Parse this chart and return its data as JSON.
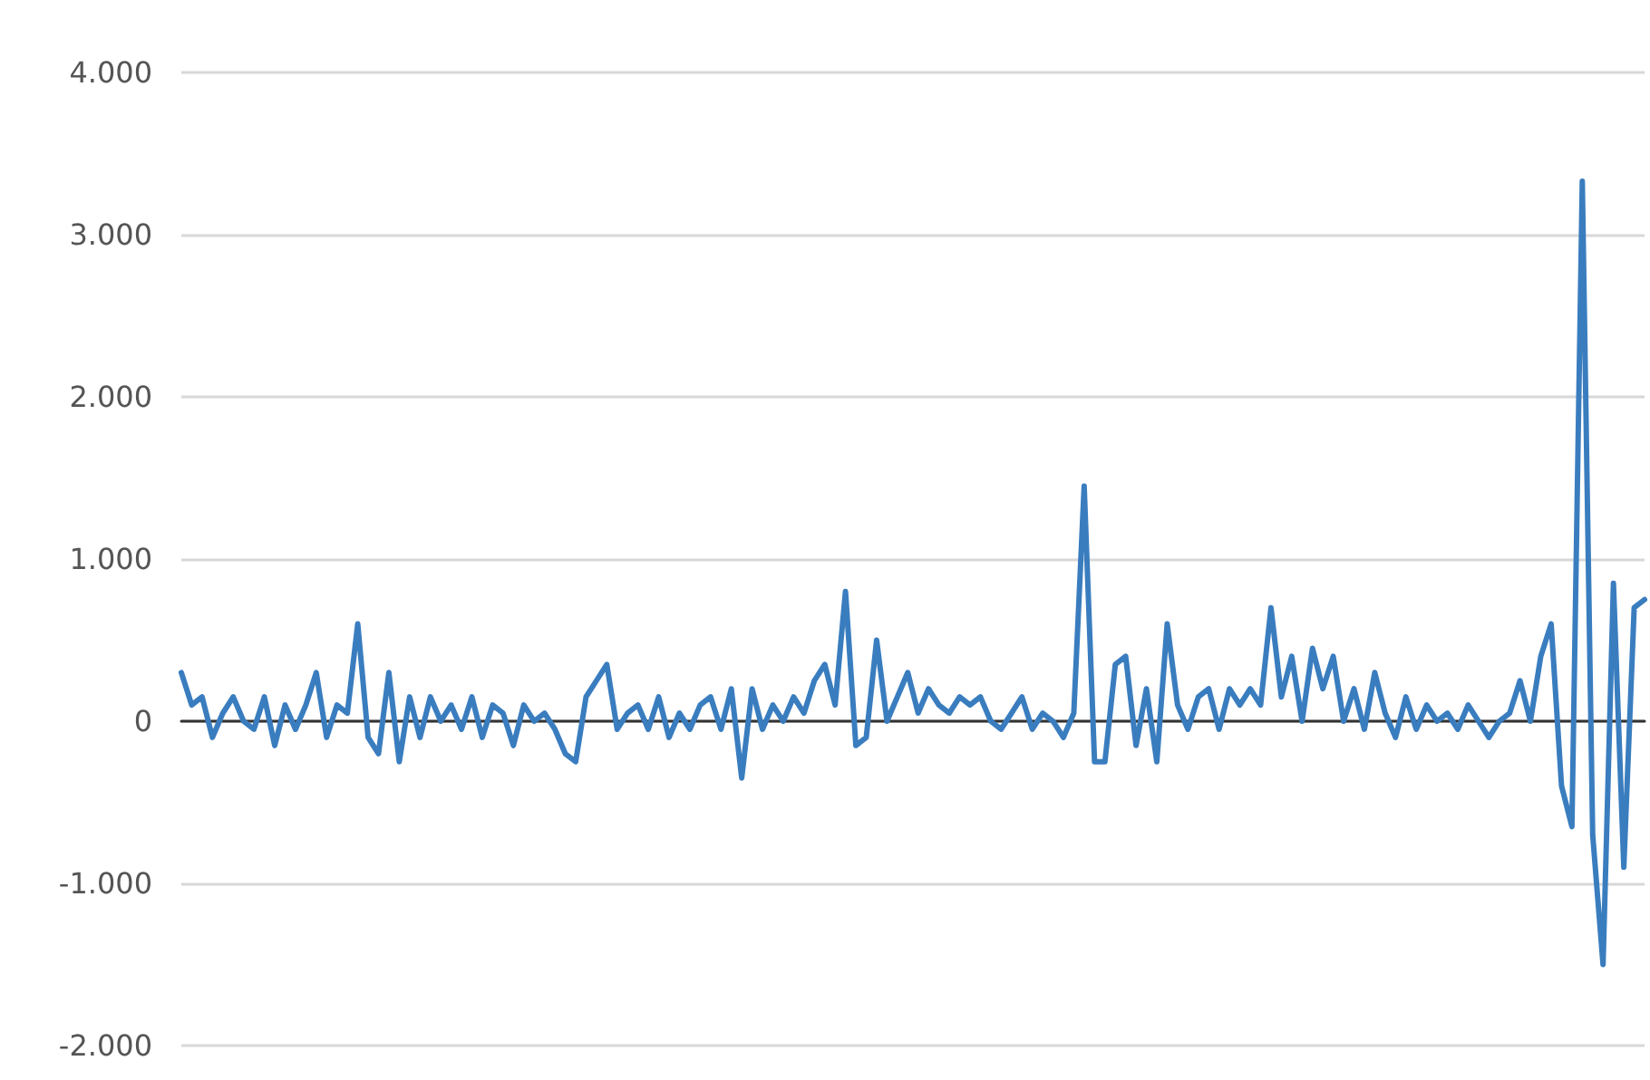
{
  "chart_data": {
    "type": "line",
    "color": "#3a7dbf",
    "marker": "none",
    "line_style": "solid",
    "grid": "y",
    "ylim": [
      -2000,
      4000
    ],
    "yticks": [
      {
        "value": -2000,
        "label": "-2.000"
      },
      {
        "value": -1000,
        "label": "-1.000"
      },
      {
        "value": 0,
        "label": "0"
      },
      {
        "value": 1000,
        "label": "1.000"
      },
      {
        "value": 2000,
        "label": "2.000"
      },
      {
        "value": 3000,
        "label": "3.000"
      },
      {
        "value": 4000,
        "label": "4.000"
      }
    ],
    "values": [
      300,
      100,
      150,
      -100,
      50,
      150,
      0,
      -50,
      150,
      -150,
      100,
      -50,
      100,
      300,
      -100,
      100,
      50,
      600,
      -100,
      -200,
      300,
      -250,
      150,
      -100,
      150,
      0,
      100,
      -50,
      150,
      -100,
      100,
      50,
      -150,
      100,
      0,
      50,
      -50,
      -200,
      -250,
      150,
      250,
      350,
      -50,
      50,
      100,
      -50,
      150,
      -100,
      50,
      -50,
      100,
      150,
      -50,
      200,
      -350,
      200,
      -50,
      100,
      0,
      150,
      50,
      250,
      350,
      100,
      800,
      -150,
      -100,
      500,
      0,
      150,
      300,
      50,
      200,
      100,
      50,
      150,
      100,
      150,
      0,
      -50,
      50,
      150,
      -50,
      50,
      0,
      -100,
      50,
      1450,
      -250,
      -250,
      350,
      400,
      -150,
      200,
      -250,
      600,
      100,
      -50,
      150,
      200,
      -50,
      200,
      100,
      200,
      100,
      700,
      150,
      400,
      0,
      450,
      200,
      400,
      0,
      200,
      -50,
      300,
      50,
      -100,
      150,
      -50,
      100,
      0,
      50,
      -50,
      100,
      0,
      -100,
      0,
      50,
      250,
      0,
      400,
      600,
      -400,
      -650,
      3330,
      -700,
      -1500,
      850,
      -900,
      700,
      750
    ]
  }
}
